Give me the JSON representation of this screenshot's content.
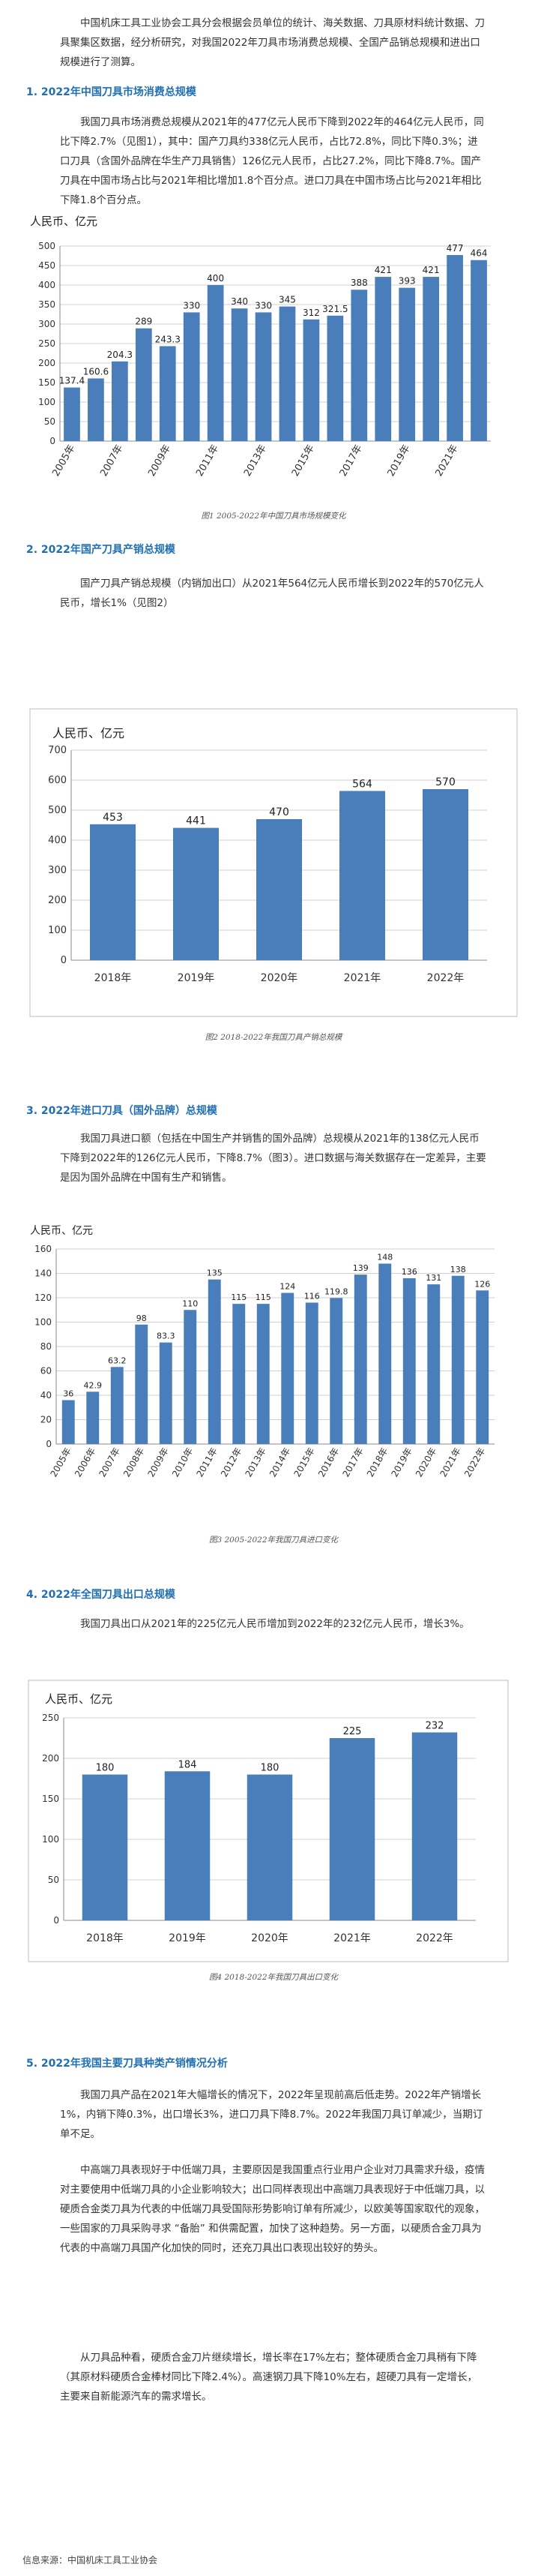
{
  "intro": "中国机床工具工业协会工具分会根据会员单位的统计、海关数据、刀具原材料统计数据、刀具聚集区数据，经分析研究，对我国2022年刀具市场消费总规模、全国产品销总规模和进出口规模进行了测算。",
  "sections": [
    {
      "heading": "1. 2022年中国刀具市场消费总规模",
      "text": "我国刀具市场消费总规模从2021年的477亿元人民币下降到2022年的464亿元人民币，同比下降2.7%（见图1），其中：国产刀具约338亿元人民币，占比72.8%，同比下降0.3%；进口刀具（含国外品牌在华生产刀具销售）126亿元人民币，占比27.2%，同比下降8.7%。国产刀具在中国市场占比与2021年相比增加1.8个百分点。进口刀具在中国市场占比与2021年相比下降1.8个百分点。",
      "caption": "图1 2005-2022年中国刀具市场规模变化"
    },
    {
      "heading": "2. 2022年国产刀具产销总规模",
      "text": "国产刀具产销总规模（内销加出口）从2021年564亿元人民币增长到2022年的570亿元人民币，增长1%（见图2）",
      "caption": "图2 2018-2022年我国刀具产销总规模"
    },
    {
      "heading": "3. 2022年进口刀具（国外品牌）总规模",
      "text": "我国刀具进口额（包括在中国生产并销售的国外品牌）总规模从2021年的138亿元人民币下降到2022年的126亿元人民币，下降8.7%（图3）。进口数据与海关数据存在一定差异，主要是因为国外品牌在中国有生产和销售。",
      "caption": "图3 2005-2022年我国刀具进口变化"
    },
    {
      "heading": "4. 2022年全国刀具出口总规模",
      "text": "我国刀具出口从2021年的225亿元人民币增加到2022年的232亿元人民币，增长3%。",
      "caption": "图4 2018-2022年我国刀具出口变化"
    },
    {
      "heading": "5. 2022年我国主要刀具种类产销情况分析",
      "paragraphs": [
        "我国刀具产品在2021年大幅增长的情况下，2022年呈现前高后低走势。2022年产销增长1%，内销下降0.3%，出口增长3%，进口刀具下降8.7%。2022年我国刀具订单减少，当期订单不足。",
        "中高端刀具表现好于中低端刀具，主要原因是我国重点行业用户企业对刀具需求升级，疫情对主要使用中低端刀具的小企业影响较大；出口同样表现出中高端刀具表现好于中低端刀具，以硬质合金类刀具为代表的中低端刀具受国际形势影响订单有所减少，以欧美等国家取代的观象，一些国家的刀具采购寻求 “备胎” 和供需配置，加快了这种趋势。另一方面，以硬质合金刀具为代表的中高端刀具国产化加快的同时，还充刀具出口表现出较好的势头。",
        "从刀具品种看，硬质合金刀片继续增长，增长率在17%左右；整体硬质合金刀具稍有下降（其原材料硬质合金棒材同比下降2.4%）。高速钢刀具下降10%左右，超硬刀具有一定增长，主要来自新能源汽车的需求增长。"
      ]
    }
  ],
  "source": "信息来源：中国机床工具工业协会",
  "charts": {
    "chart1": {
      "type": "bar",
      "ylabel": "人民币、亿元",
      "ylim": [
        0,
        500
      ],
      "yticks": [
        0,
        50,
        100,
        150,
        200,
        250,
        300,
        350,
        400,
        450,
        500
      ],
      "categories": [
        "2005年",
        "2006年",
        "2007年",
        "2008年",
        "2009年",
        "2010年",
        "2011年",
        "2012年",
        "2013年",
        "2014年",
        "2015年",
        "2016年",
        "2017年",
        "2018年",
        "2019年",
        "2020年",
        "2021年",
        "2022年"
      ],
      "xlabels": [
        "2005年",
        "",
        "2007年",
        "",
        "2009年",
        "",
        "2011年",
        "",
        "2013年",
        "",
        "2015年",
        "",
        "2017年",
        "",
        "2019年",
        "",
        "2021年",
        ""
      ],
      "values": [
        137.4,
        160.6,
        204.3,
        289,
        243.3,
        330,
        400,
        340,
        330,
        345,
        312,
        321.5,
        388,
        421,
        393,
        421,
        477,
        464
      ],
      "value_labels": [
        "137.4",
        "160.6",
        "204.3",
        "289",
        "243.3",
        "330",
        "400",
        "340",
        "330",
        "345",
        "312",
        "321.5",
        "388",
        "421",
        "393",
        "421",
        "477",
        "464"
      ],
      "grid": true,
      "color": "#4a7ebb"
    },
    "chart2": {
      "type": "bar",
      "ylabel": "人民币、亿元",
      "ylim": [
        0,
        700
      ],
      "yticks": [
        0,
        100,
        200,
        300,
        400,
        500,
        600,
        700
      ],
      "categories": [
        "2018年",
        "2019年",
        "2020年",
        "2021年",
        "2022年"
      ],
      "values": [
        453,
        441,
        470,
        564,
        570
      ],
      "value_labels": [
        "453",
        "441",
        "470",
        "564",
        "570"
      ],
      "grid": true,
      "color": "#4a7ebb"
    },
    "chart3": {
      "type": "bar",
      "ylabel": "人民币、亿元",
      "ylim": [
        0,
        160
      ],
      "yticks": [
        0,
        20,
        40,
        60,
        80,
        100,
        120,
        140,
        160
      ],
      "categories": [
        "2005年",
        "2006年",
        "2007年",
        "2008年",
        "2009年",
        "2010年",
        "2011年",
        "2012年",
        "2013年",
        "2014年",
        "2015年",
        "2016年",
        "2017年",
        "2018年",
        "2019年",
        "2020年",
        "2021年",
        "2022年"
      ],
      "xlabels": [
        "2005年",
        "2006年",
        "2007年",
        "2008年",
        "2009年",
        "2010年",
        "2011年",
        "2012年",
        "2013年",
        "2014年",
        "2015年",
        "2016年",
        "2017年",
        "2018年",
        "2019年",
        "2020年",
        "2021年",
        "2022年"
      ],
      "values": [
        36,
        42.9,
        63.2,
        98,
        83.3,
        110,
        135,
        115,
        115,
        124,
        116,
        119.8,
        139,
        148,
        136,
        131,
        138,
        126
      ],
      "value_labels": [
        "36",
        "42.9",
        "63.2",
        "98",
        "83.3",
        "110",
        "135",
        "115",
        "115",
        "124",
        "116",
        "119.8",
        "139",
        "148",
        "136",
        "131",
        "138",
        "126"
      ],
      "grid": true,
      "color": "#4a7ebb"
    },
    "chart4": {
      "type": "bar",
      "ylabel": "人民币、亿元",
      "ylim": [
        0,
        250
      ],
      "yticks": [
        0,
        50,
        100,
        150,
        200,
        250
      ],
      "categories": [
        "2018年",
        "2019年",
        "2020年",
        "2021年",
        "2022年"
      ],
      "values": [
        180,
        184,
        180,
        225,
        232
      ],
      "value_labels": [
        "180",
        "184",
        "180",
        "225",
        "232"
      ],
      "grid": true,
      "color": "#4a7ebb"
    }
  }
}
